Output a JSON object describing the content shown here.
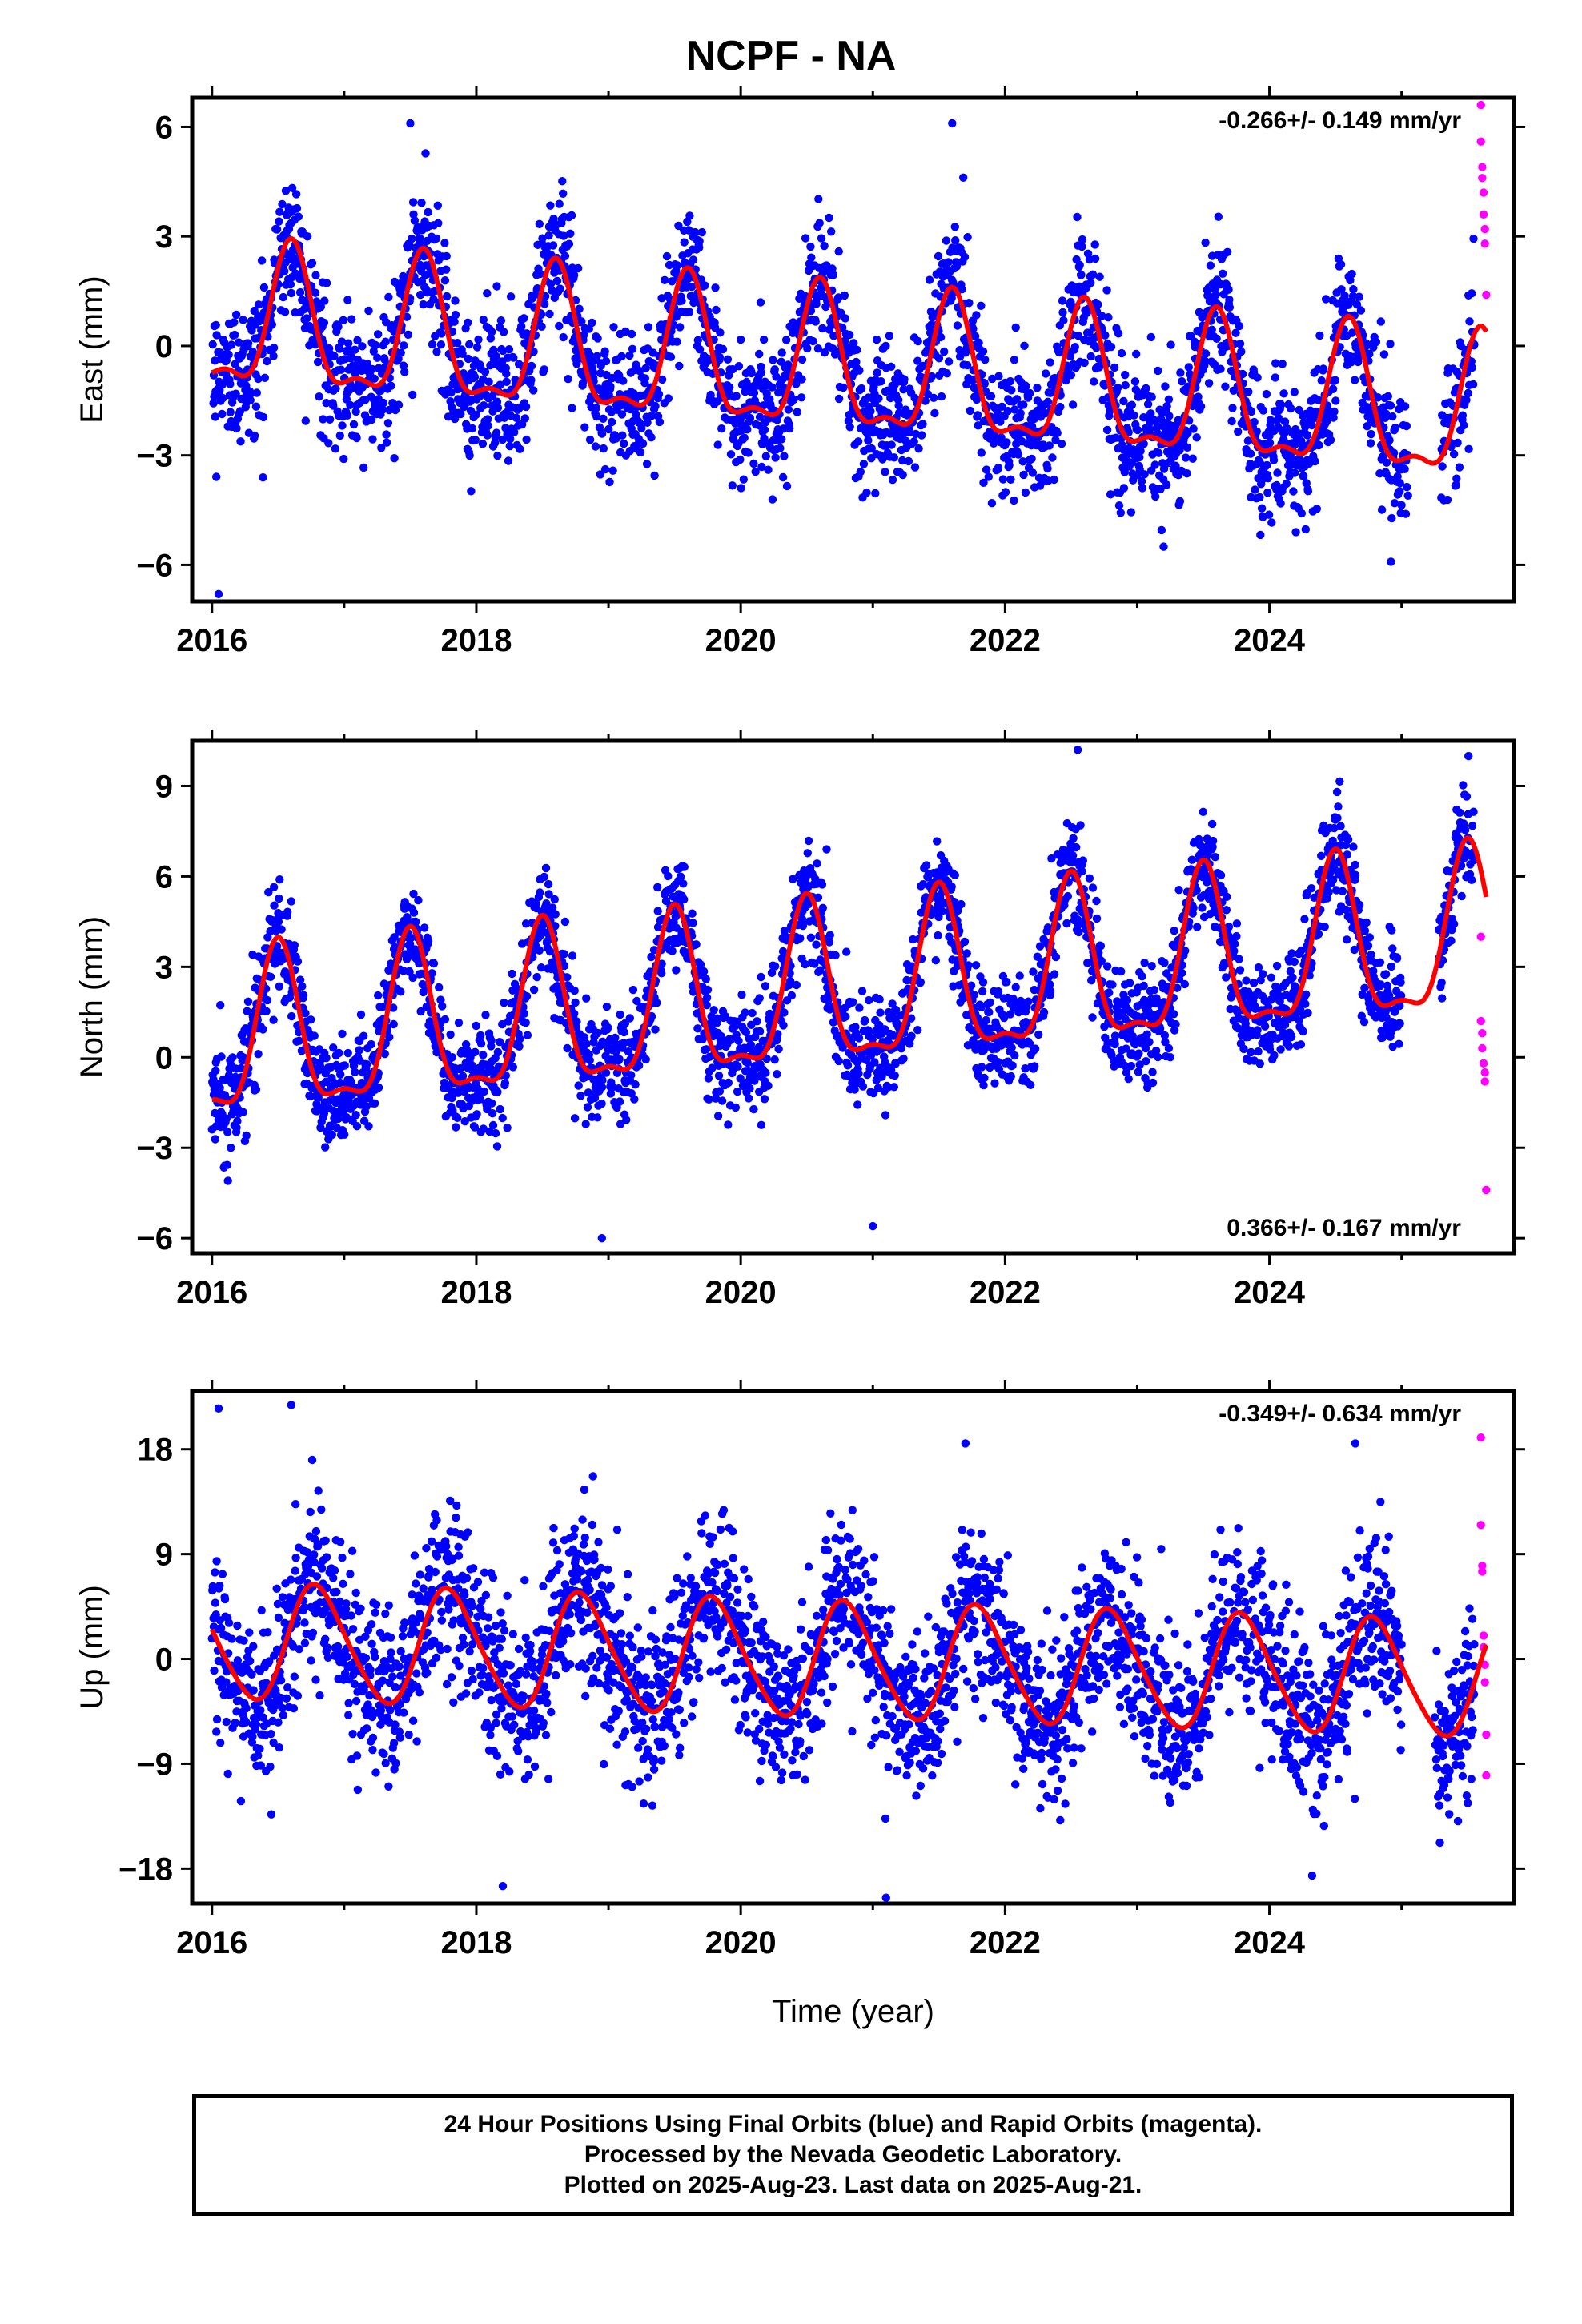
{
  "title": "NCPF - NA",
  "footer": {
    "line1": "24 Hour Positions Using Final Orbits (blue) and Rapid Orbits (magenta).",
    "line2": "Processed by the Nevada Geodetic Laboratory.",
    "line3": "Plotted on 2025-Aug-23. Last data on 2025-Aug-21."
  },
  "colors": {
    "final": "#0000ff",
    "rapid": "#ff00ff",
    "model": "#ff0000",
    "axis": "#000000"
  },
  "chart_data": [
    {
      "type": "scatter",
      "component": "east",
      "ylabel": "East (mm)",
      "xlabel": "",
      "rate_label": "-0.266+/- 0.149 mm/yr",
      "rate_position": "top-right",
      "xlim": [
        2015.85,
        2025.85
      ],
      "ylim": [
        -7.0,
        6.8
      ],
      "xticks": [
        2016,
        2018,
        2020,
        2022,
        2024
      ],
      "yticks": [
        6,
        3,
        0,
        -3,
        -6
      ],
      "ytick_labels": [
        "6",
        "3",
        "0",
        "−3",
        "−6"
      ],
      "rate_mm_per_yr": -0.266,
      "seasonal": {
        "offset": 0.55,
        "annual_amp": 1.85,
        "annual_peak_frac": 0.6,
        "semiannual_amp": 0.7,
        "semiannual_peak_frac": 0.1
      },
      "noise_sd": 0.95,
      "final_series": {
        "name": "Final Orbits",
        "start": 2016.0,
        "end": 2025.55,
        "gaps": [
          [
            2025.05,
            2025.3
          ]
        ]
      },
      "rapid_series": {
        "name": "Rapid Orbits",
        "x": [
          2025.6,
          2025.6,
          2025.61,
          2025.61,
          2025.62,
          2025.62,
          2025.63,
          2025.63,
          2025.64
        ],
        "y": [
          6.6,
          5.6,
          4.9,
          4.6,
          4.2,
          3.6,
          3.2,
          2.8,
          1.4
        ]
      },
      "outliers": {
        "x": [
          2016.05,
          2017.5,
          2021.6,
          2023.2,
          2024.2
        ],
        "y": [
          -6.8,
          6.1,
          6.1,
          -5.5,
          -5.1
        ]
      }
    },
    {
      "type": "scatter",
      "component": "north",
      "ylabel": "North (mm)",
      "xlabel": "",
      "rate_label": "0.366+/- 0.167 mm/yr",
      "rate_position": "bottom-right",
      "xlim": [
        2015.85,
        2025.85
      ],
      "ylim": [
        -6.5,
        10.5
      ],
      "xticks": [
        2016,
        2018,
        2020,
        2022,
        2024
      ],
      "yticks": [
        9,
        6,
        3,
        0,
        -3,
        -6
      ],
      "ytick_labels": [
        "9",
        "6",
        "3",
        "0",
        "−3",
        "−6"
      ],
      "rate_mm_per_yr": 0.366,
      "seasonal": {
        "offset": 0.3,
        "annual_amp": 2.6,
        "annual_peak_frac": 0.5,
        "semiannual_amp": 0.9,
        "semiannual_peak_frac": 0.0
      },
      "noise_sd": 0.9,
      "final_series": {
        "name": "Final Orbits",
        "start": 2016.0,
        "end": 2025.55,
        "gaps": [
          [
            2025.0,
            2025.28
          ]
        ]
      },
      "rapid_series": {
        "name": "Rapid Orbits",
        "x": [
          2025.6,
          2025.6,
          2025.61,
          2025.61,
          2025.62,
          2025.63,
          2025.63,
          2025.64
        ],
        "y": [
          4.0,
          1.2,
          0.8,
          0.3,
          -0.2,
          -0.5,
          -0.8,
          -4.4
        ]
      },
      "outliers": {
        "x": [
          2022.55,
          2020.65,
          2018.95,
          2021.0
        ],
        "y": [
          10.2,
          6.9,
          -6.0,
          -5.6
        ]
      }
    },
    {
      "type": "scatter",
      "component": "up",
      "ylabel": "Up (mm)",
      "xlabel": "Time (year)",
      "rate_label": "-0.349+/- 0.634 mm/yr",
      "rate_position": "top-right",
      "xlim": [
        2015.85,
        2025.85
      ],
      "ylim": [
        -21,
        23
      ],
      "xticks": [
        2016,
        2018,
        2020,
        2022,
        2024
      ],
      "yticks": [
        18,
        9,
        0,
        -9,
        -18
      ],
      "ytick_labels": [
        "18",
        "9",
        "0",
        "−9",
        "−18"
      ],
      "rate_mm_per_yr": -0.349,
      "seasonal": {
        "offset": 1.5,
        "annual_amp": 4.9,
        "annual_peak_frac": 0.8,
        "semiannual_amp": 0.6,
        "semiannual_peak_frac": 0.2
      },
      "noise_sd": 3.6,
      "final_series": {
        "name": "Final Orbits",
        "start": 2016.0,
        "end": 2025.55,
        "gaps": [
          [
            2025.0,
            2025.25
          ]
        ]
      },
      "rapid_series": {
        "name": "Rapid Orbits",
        "x": [
          2025.6,
          2025.6,
          2025.61,
          2025.61,
          2025.62,
          2025.62,
          2025.63,
          2025.63,
          2025.64,
          2025.64
        ],
        "y": [
          19.0,
          11.5,
          8.0,
          7.5,
          2.0,
          1.0,
          -0.5,
          -2.0,
          -6.5,
          -10.0
        ]
      },
      "outliers": {
        "x": [
          2016.05,
          2016.6,
          2018.2,
          2021.1,
          2021.7,
          2024.65
        ],
        "y": [
          21.5,
          21.8,
          -19.5,
          -20.5,
          18.5,
          18.5
        ]
      }
    }
  ]
}
